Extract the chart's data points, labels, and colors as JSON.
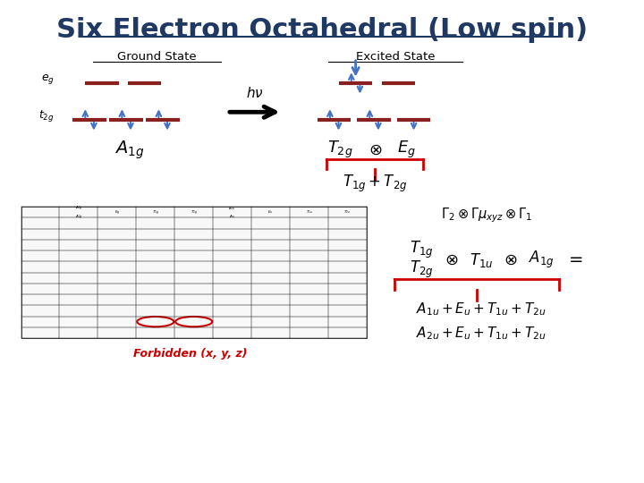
{
  "title": "Six Electron Octahedral (Low spin)",
  "title_color": "#1F3864",
  "title_fontsize": 22,
  "ground_state_label": "Ground State",
  "excited_state_label": "Excited State",
  "eg_label": "$e_g$",
  "t2g_label": "$t_{2g}$",
  "orbital_line_color": "#8B2020",
  "arrow_color": "#4472C4",
  "background_color": "#FFFFFF",
  "hv_label": "$h\\nu$",
  "A1g_text": "$A_{1g}$",
  "T2g_Eg_text1": "$T_{2g}$",
  "otimes": "$\\otimes$",
  "T2g_Eg_text2": "$E_g$",
  "T1g_T2g_text": "$T_{1g} + T_{2g}$",
  "Gamma_text": "$\\Gamma_2 \\otimes \\Gamma\\mu_{xyz} \\otimes \\Gamma_1$",
  "T1g_left": "$T_{1g}$",
  "T2g_left": "$T_{2g}$",
  "T1u_text": "$T_{1u}$",
  "A1g_right": "$A_{1g}$",
  "equals": "=",
  "result_line1": "$A_{1u} + E_u + T_{1u} + T_{2u}$",
  "result_line2": "$A_{2u} + E_u + T_{1u} + T_{2u}$",
  "forbidden_text": "Forbidden (x, y, z)",
  "forbidden_color": "#CC0000",
  "brace_color": "#CC0000"
}
